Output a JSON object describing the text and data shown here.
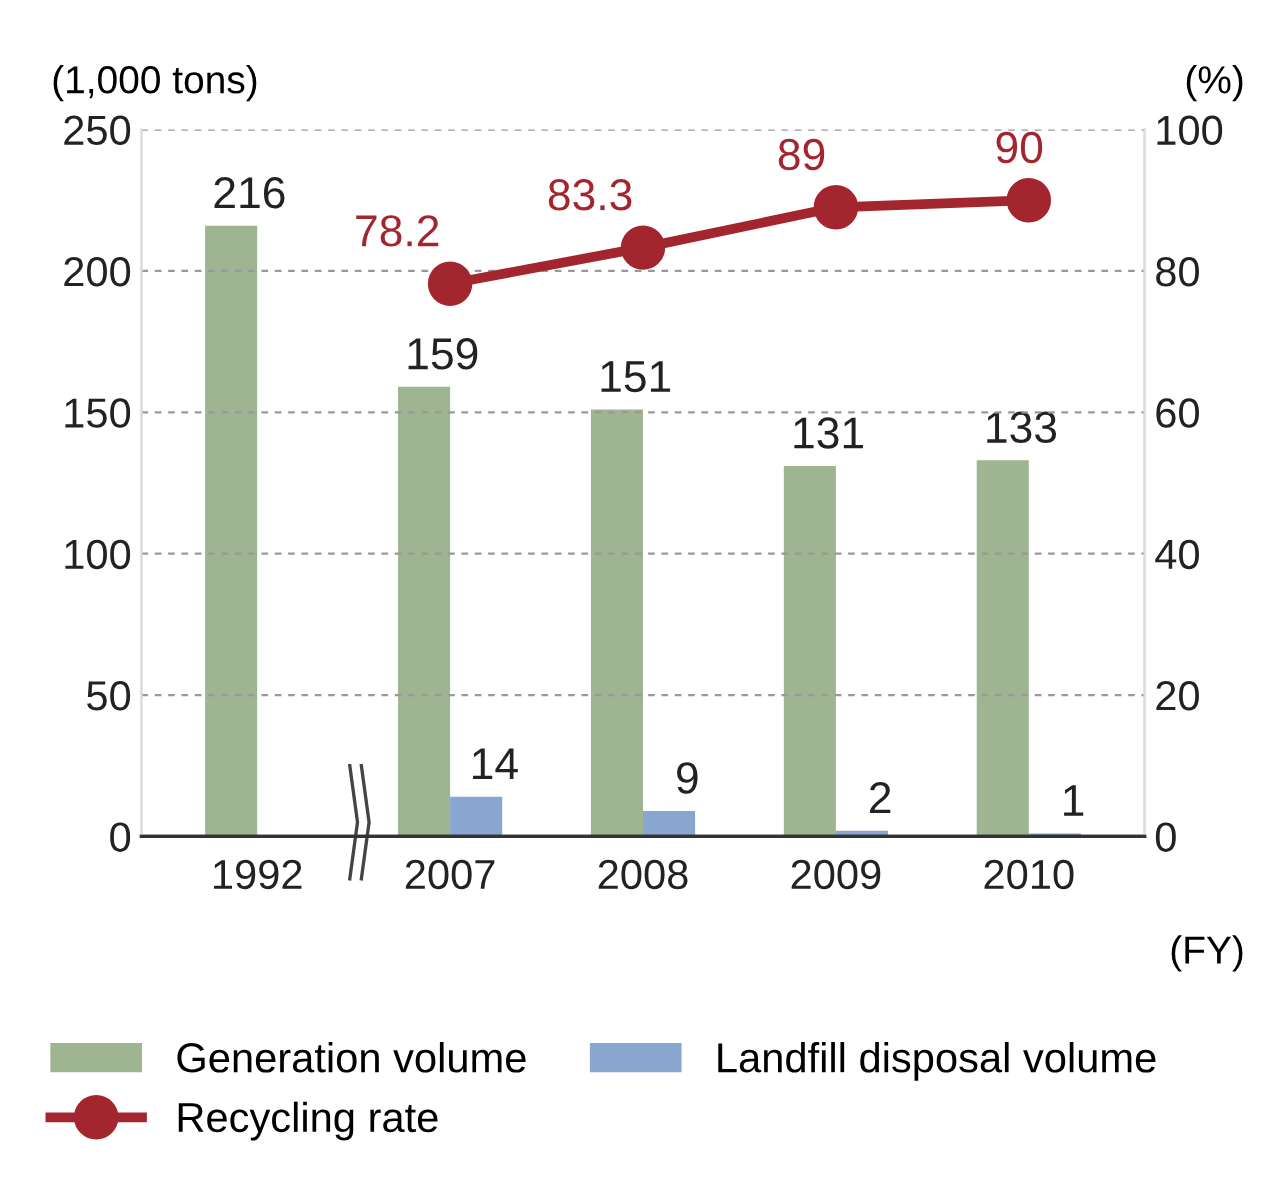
{
  "chart_data": {
    "type": "bar",
    "ylabel": "(1,000 tons)",
    "y2label": "(%)",
    "xlabel": "(FY)",
    "categories": [
      "1992",
      "2007",
      "2008",
      "2009",
      "2010"
    ],
    "series": [
      {
        "name": "Generation volume",
        "color": "#9fb592",
        "values": [
          216,
          159,
          151,
          131,
          133
        ]
      },
      {
        "name": "Landfill disposal volume",
        "color": "#88a6d0",
        "values": [
          null,
          14,
          9,
          2,
          1
        ]
      },
      {
        "name": "Recycling rate",
        "type": "line",
        "axis": "y2",
        "color": "#a3262f",
        "marker": "circle",
        "line_style": "solid",
        "values": [
          null,
          78.2,
          83.3,
          89,
          90
        ]
      }
    ],
    "ylim": [
      0,
      250
    ],
    "yticks": [
      0,
      50,
      100,
      150,
      200,
      250
    ],
    "y2lim": [
      0,
      100
    ],
    "y2ticks": [
      0,
      20,
      40,
      60,
      80,
      100
    ],
    "grid": "y",
    "legend": "bottom",
    "data_labels": true
  }
}
